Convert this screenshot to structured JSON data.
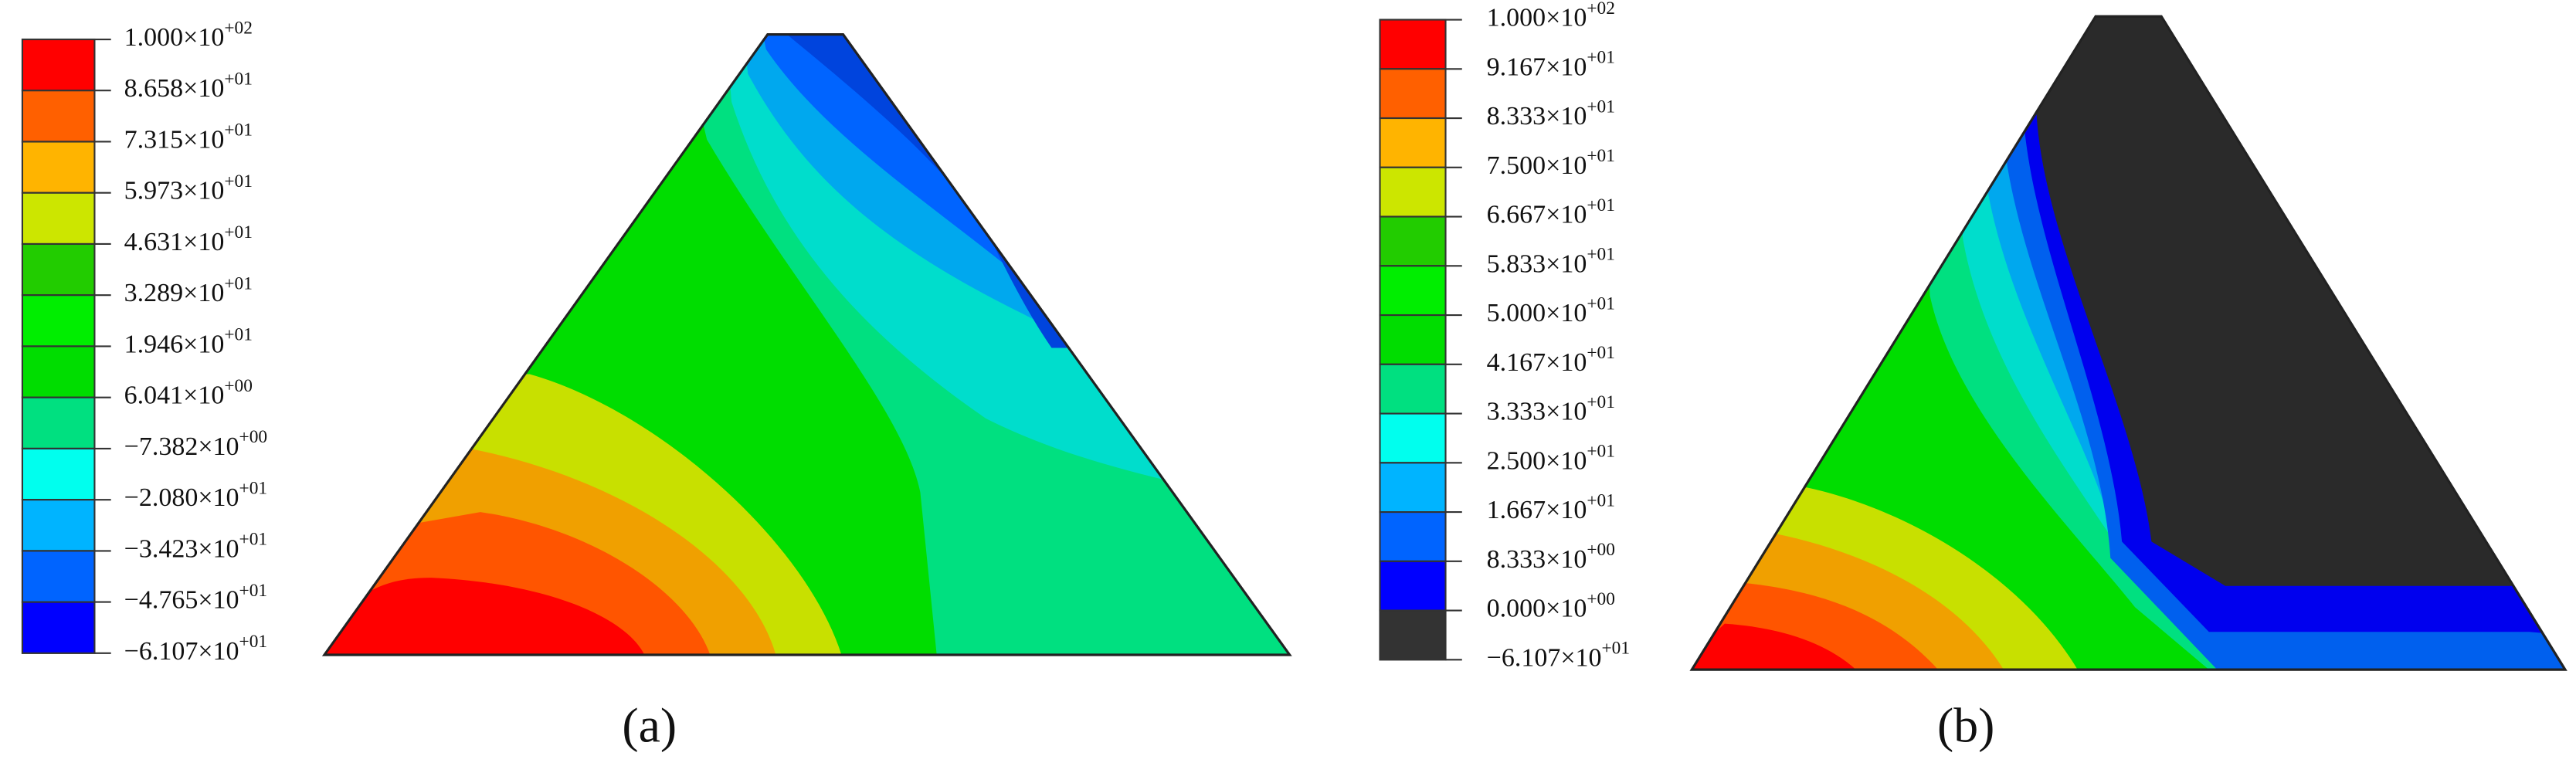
{
  "panels": [
    {
      "caption": "(a)",
      "legend": [
        {
          "base": "1.000×10",
          "exp": "+02"
        },
        {
          "base": "8.658×10",
          "exp": "+01"
        },
        {
          "base": "7.315×10",
          "exp": "+01"
        },
        {
          "base": "5.973×10",
          "exp": "+01"
        },
        {
          "base": "4.631×10",
          "exp": "+01"
        },
        {
          "base": "3.289×10",
          "exp": "+01"
        },
        {
          "base": "1.946×10",
          "exp": "+01"
        },
        {
          "base": "6.041×10",
          "exp": "+00"
        },
        {
          "base": "−7.382×10",
          "exp": "+00"
        },
        {
          "base": "−2.080×10",
          "exp": "+01"
        },
        {
          "base": "−3.423×10",
          "exp": "+01"
        },
        {
          "base": "−4.765×10",
          "exp": "+01"
        },
        {
          "base": "−6.107×10",
          "exp": "+01"
        }
      ],
      "colors": [
        "#ff0000",
        "#ff6000",
        "#ffb400",
        "#cce600",
        "#22cc00",
        "#00ee00",
        "#00dd00",
        "#00e080",
        "#00ffee",
        "#00b4ff",
        "#0064ff",
        "#0000ff"
      ]
    },
    {
      "caption": "(b)",
      "legend": [
        {
          "base": "1.000×10",
          "exp": "+02"
        },
        {
          "base": "9.167×10",
          "exp": "+01"
        },
        {
          "base": "8.333×10",
          "exp": "+01"
        },
        {
          "base": "7.500×10",
          "exp": "+01"
        },
        {
          "base": "6.667×10",
          "exp": "+01"
        },
        {
          "base": "5.833×10",
          "exp": "+01"
        },
        {
          "base": "5.000×10",
          "exp": "+01"
        },
        {
          "base": "4.167×10",
          "exp": "+01"
        },
        {
          "base": "3.333×10",
          "exp": "+01"
        },
        {
          "base": "2.500×10",
          "exp": "+01"
        },
        {
          "base": "1.667×10",
          "exp": "+01"
        },
        {
          "base": "8.333×10",
          "exp": "+00"
        },
        {
          "base": "0.000×10",
          "exp": "+00"
        },
        {
          "base": "−6.107×10",
          "exp": "+01"
        }
      ],
      "colors": [
        "#ff0000",
        "#ff6000",
        "#ffb400",
        "#cce600",
        "#22cc00",
        "#00ee00",
        "#00dd00",
        "#00e080",
        "#00ffee",
        "#00b4ff",
        "#0064ff",
        "#0000ff",
        "#333333"
      ]
    }
  ]
}
